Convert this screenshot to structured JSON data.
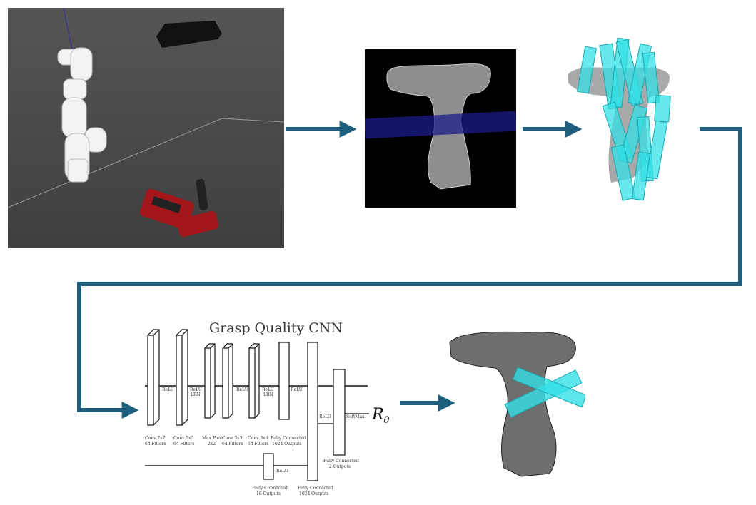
{
  "cnn": {
    "title": "Grasp Quality CNN",
    "output_label": "R",
    "output_sub": "θ",
    "relu_labels": [
      "ReLU",
      "ReLU",
      "ReLU",
      "ReLU",
      "ReLU",
      "ReLU"
    ],
    "lrn_labels": [
      "LRN",
      "LRN"
    ],
    "softmax_label": "SoftMax",
    "layers": [
      {
        "line1": "Conv 7x7",
        "line2": "64 Filters"
      },
      {
        "line1": "Conv 5x5",
        "line2": "64 Filters"
      },
      {
        "line1": "Max Pool",
        "line2": "2x2"
      },
      {
        "line1": "Conv 3x3",
        "line2": "64 Filters"
      },
      {
        "line1": "Conv 3x3",
        "line2": "64 Filters"
      },
      {
        "line1": "Fully Connected",
        "line2": "1024 Outputs"
      },
      {
        "line1": "Fully Connected",
        "line2": "2 Outputs"
      },
      {
        "line1": "Fully Connected",
        "line2": "16 Outputs"
      },
      {
        "line1": "Fully Connected",
        "line2": "1024 Outputs"
      }
    ]
  },
  "colors": {
    "arrow": "#1d5f7d",
    "grasp": "#33e0e6",
    "sim_floor": "#4a4a4a",
    "robot": "#f2f2f2",
    "drill": "#a3161b"
  }
}
